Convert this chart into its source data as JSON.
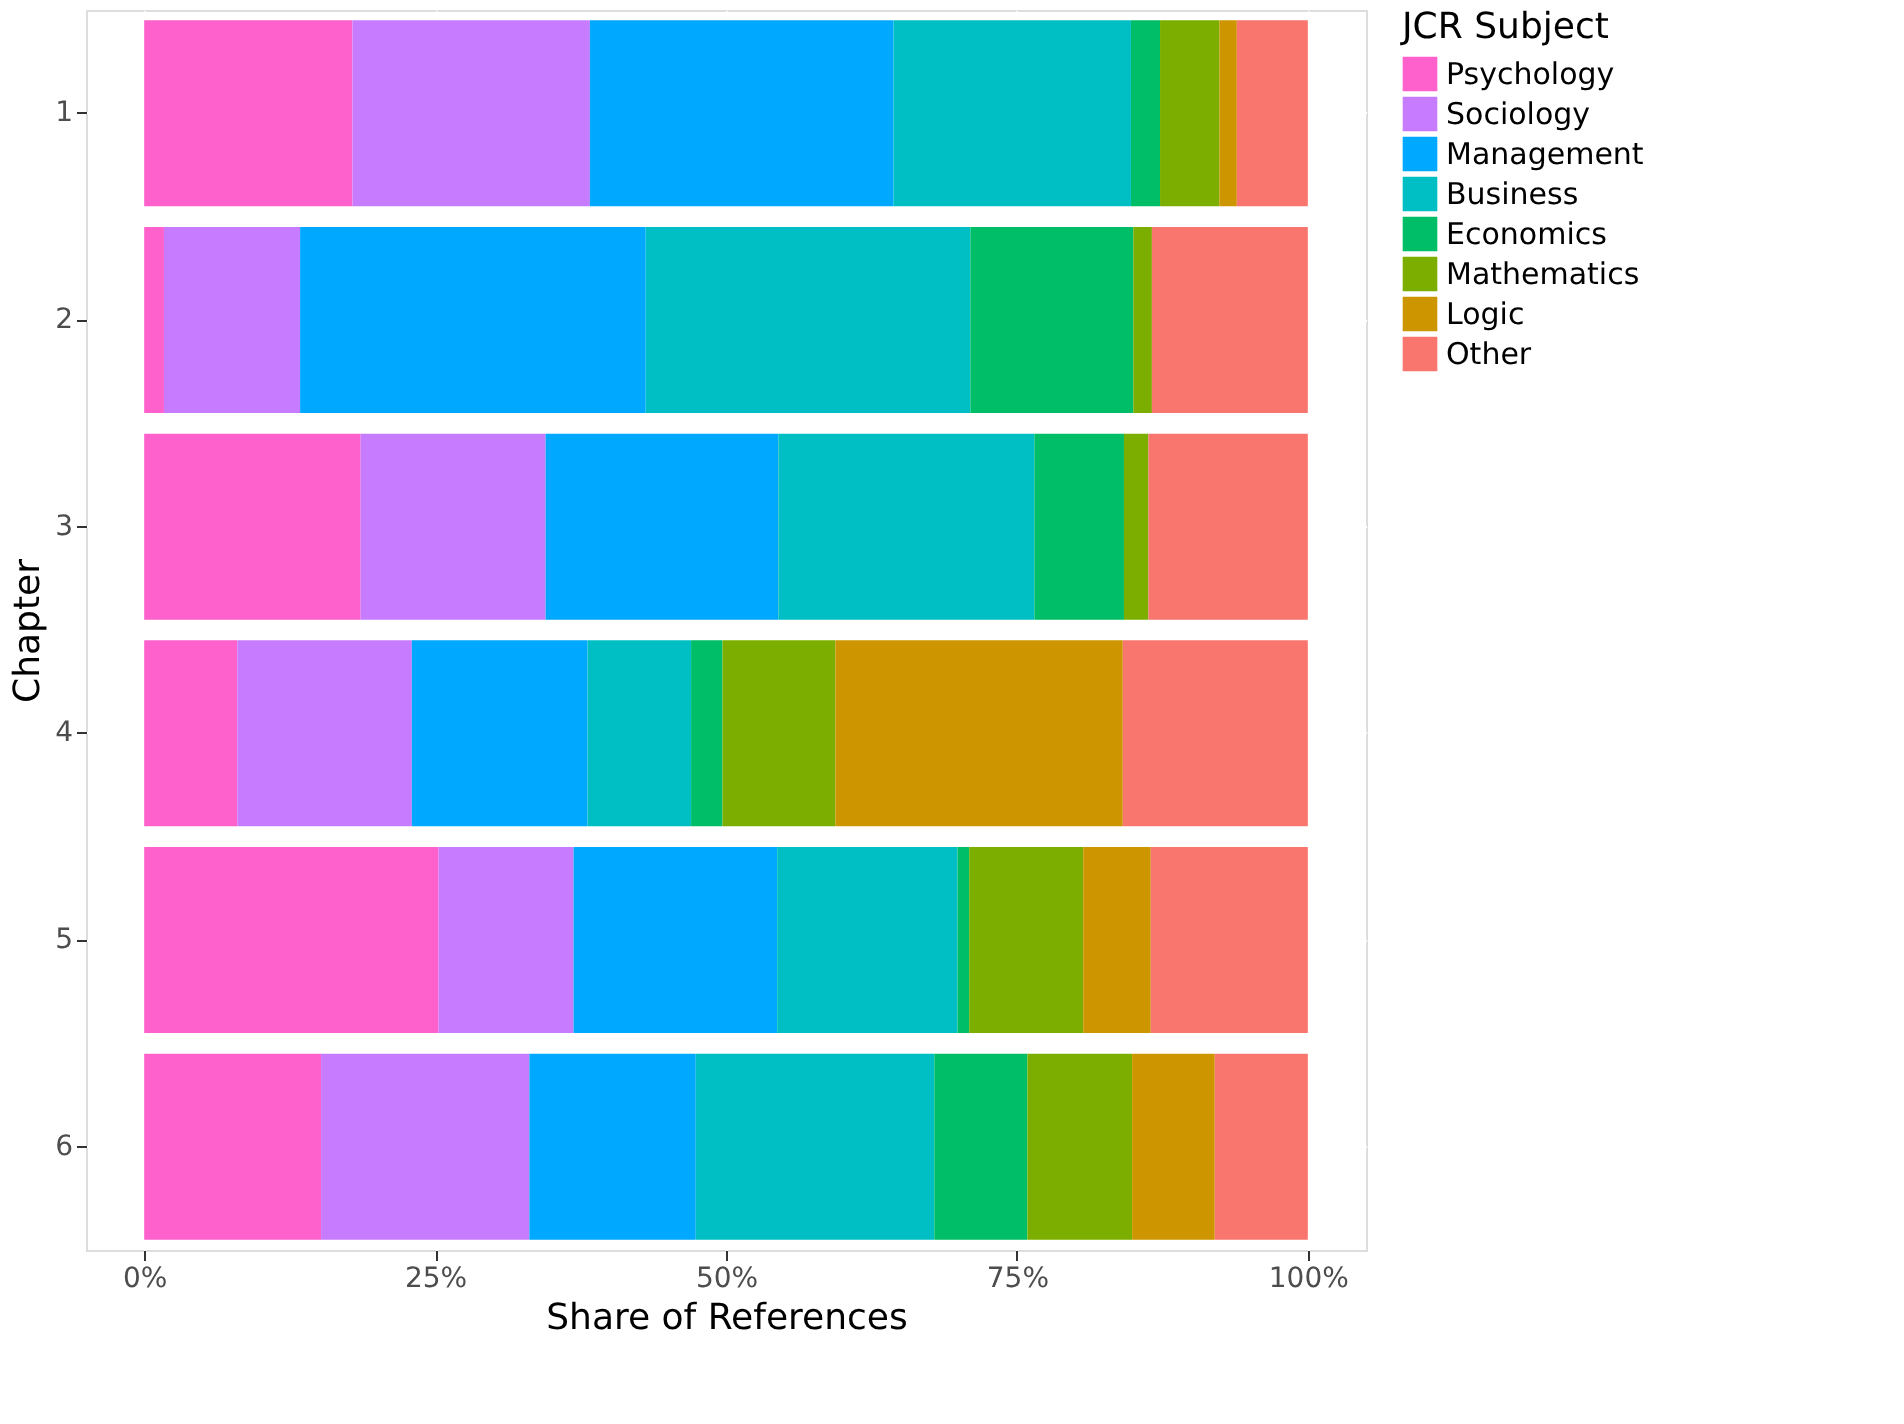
{
  "chart_data": {
    "type": "bar",
    "orientation": "horizontal",
    "stacked": true,
    "xlabel": "Share of References",
    "ylabel": "Chapter",
    "legend_title": "JCR Subject",
    "categories": [
      "1",
      "2",
      "3",
      "4",
      "5",
      "6"
    ],
    "series": [
      {
        "name": "Psychology",
        "color": "#ff61cc",
        "values": [
          17.9,
          1.7,
          18.6,
          8.0,
          25.3,
          15.2
        ]
      },
      {
        "name": "Sociology",
        "color": "#c77cff",
        "values": [
          20.4,
          11.7,
          15.9,
          15.0,
          11.6,
          17.9
        ]
      },
      {
        "name": "Management",
        "color": "#00a9ff",
        "values": [
          26.1,
          29.7,
          20.0,
          15.1,
          17.5,
          14.3
        ]
      },
      {
        "name": "Business",
        "color": "#00bfc4",
        "values": [
          20.4,
          27.9,
          22.0,
          8.9,
          15.5,
          20.5
        ]
      },
      {
        "name": "Economics",
        "color": "#00be67",
        "values": [
          2.5,
          14.0,
          7.7,
          2.7,
          1.0,
          8.0
        ]
      },
      {
        "name": "Mathematics",
        "color": "#7cae00",
        "values": [
          5.1,
          1.6,
          2.1,
          9.7,
          9.8,
          9.0
        ]
      },
      {
        "name": "Logic",
        "color": "#cd9600",
        "values": [
          1.5,
          0,
          0,
          24.7,
          5.8,
          7.1
        ]
      },
      {
        "name": "Other",
        "color": "#f8766d",
        "values": [
          6.1,
          13.4,
          13.7,
          15.9,
          13.5,
          8.0
        ]
      }
    ],
    "xlim": [
      -5,
      105
    ],
    "xticks": [
      {
        "value": 0,
        "label": "0%"
      },
      {
        "value": 25,
        "label": "25%"
      },
      {
        "value": 50,
        "label": "50%"
      },
      {
        "value": 75,
        "label": "75%"
      },
      {
        "value": 100,
        "label": "100%"
      }
    ],
    "grid": true,
    "legend": "right"
  }
}
